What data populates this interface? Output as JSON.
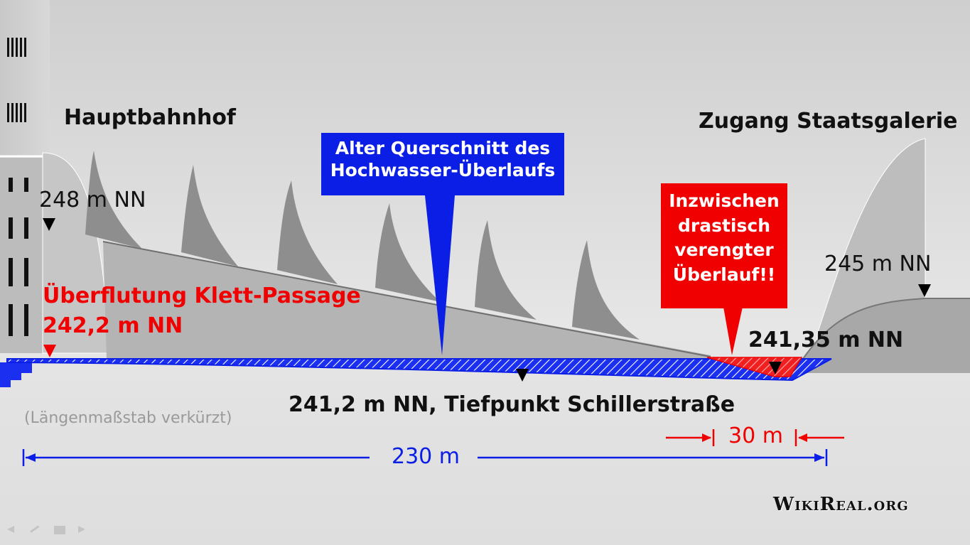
{
  "labels": {
    "hauptbahnhof": "Hauptbahnhof",
    "staatsgalerie": "Zugang Staatsgalerie",
    "elev_248": "248 m NN",
    "elev_245": "245 m NN",
    "flood_title": "Überflutung Klett-Passage",
    "flood_elev": "242,2 m NN",
    "elev_24135": "241,35 m NN",
    "low_point": "241,2 m NN, Tiefpunkt Schillerstraße",
    "scale_note": "(Längenmaßstab verkürzt)",
    "dist_230": "230 m",
    "dist_30": "30 m",
    "watermark": "WikiReal.org"
  },
  "callouts": {
    "old_section_line1": "Alter Querschnitt des",
    "old_section_line2": "Hochwasser-Überlaufs",
    "narrowed_line1": "Inzwischen",
    "narrowed_line2": "drastisch",
    "narrowed_line3": "verengter",
    "narrowed_line4": "Überlauf!!"
  },
  "colors": {
    "blue": "#0a1ee6",
    "red": "#f00000",
    "ground": "#b2b2b2",
    "dark_ground": "#8c8c8c"
  }
}
